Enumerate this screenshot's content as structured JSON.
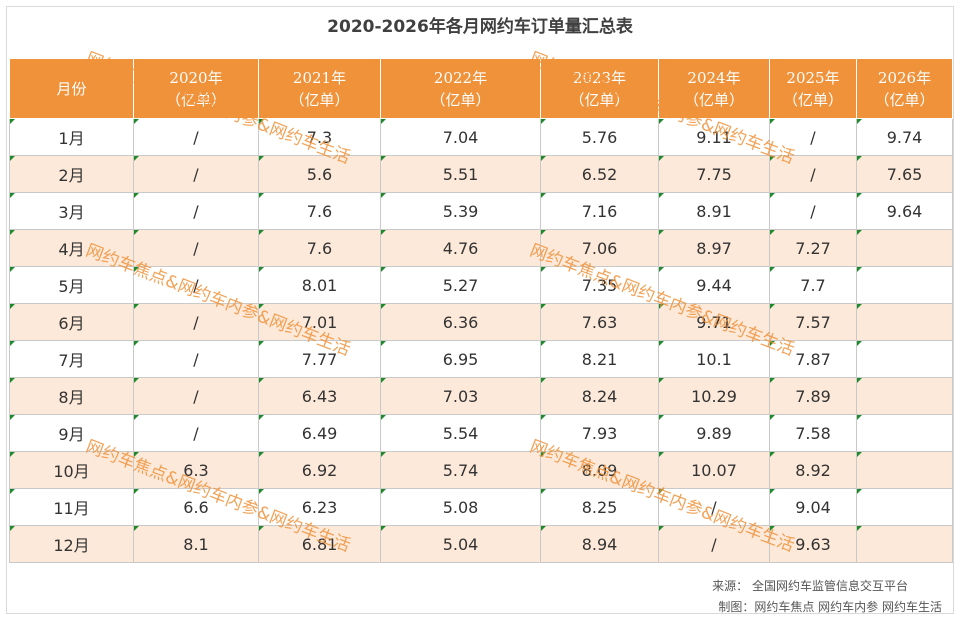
{
  "title": "2020-2026年各月网约车订单量汇总表",
  "header": {
    "month": "月份",
    "years": [
      {
        "year": "2020年",
        "unit": "（亿单）"
      },
      {
        "year": "2021年",
        "unit": "（亿单）"
      },
      {
        "year": "2022年",
        "unit": "（亿单）"
      },
      {
        "year": "2023年",
        "unit": "（亿单）"
      },
      {
        "year": "2024年",
        "unit": "（亿单）"
      },
      {
        "year": "2025年",
        "unit": "（亿单）"
      },
      {
        "year": "2026年",
        "unit": "（亿单）"
      }
    ]
  },
  "rows": [
    {
      "month": "1月",
      "v": [
        "/",
        "7.3",
        "7.04",
        "5.76",
        "9.11",
        "/",
        "9.74"
      ]
    },
    {
      "month": "2月",
      "v": [
        "/",
        "5.6",
        "5.51",
        "6.52",
        "7.75",
        "/",
        "7.65"
      ]
    },
    {
      "month": "3月",
      "v": [
        "/",
        "7.6",
        "5.39",
        "7.16",
        "8.91",
        "/",
        "9.64"
      ]
    },
    {
      "month": "4月",
      "v": [
        "/",
        "7.6",
        "4.76",
        "7.06",
        "8.97",
        "7.27",
        ""
      ]
    },
    {
      "month": "5月",
      "v": [
        "/",
        "8.01",
        "5.27",
        "7.35",
        "9.44",
        "7.7",
        ""
      ]
    },
    {
      "month": "6月",
      "v": [
        "/",
        "7.01",
        "6.36",
        "7.63",
        "9.71",
        "7.57",
        ""
      ]
    },
    {
      "month": "7月",
      "v": [
        "/",
        "7.77",
        "6.95",
        "8.21",
        "10.1",
        "7.87",
        ""
      ]
    },
    {
      "month": "8月",
      "v": [
        "/",
        "6.43",
        "7.03",
        "8.24",
        "10.29",
        "7.89",
        ""
      ]
    },
    {
      "month": "9月",
      "v": [
        "/",
        "6.49",
        "5.54",
        "7.93",
        "9.89",
        "7.58",
        ""
      ]
    },
    {
      "month": "10月",
      "v": [
        "6.3",
        "6.92",
        "5.74",
        "8.09",
        "10.07",
        "8.92",
        ""
      ]
    },
    {
      "month": "11月",
      "v": [
        "6.6",
        "6.23",
        "5.08",
        "8.25",
        "/",
        "9.04",
        ""
      ]
    },
    {
      "month": "12月",
      "v": [
        "8.1",
        "6.81",
        "5.04",
        "8.94",
        "/",
        "9.63",
        ""
      ]
    }
  ],
  "watermark": "网约车焦点&网约车内参&网约车生活",
  "footer": {
    "source": "来源：  全国网约车监管信息交互平台",
    "made_by": "制图：网约车焦点  网约车内参  网约车生活"
  },
  "colors": {
    "header_bg": "#f0923a",
    "stripe_bg": "#fde9d9",
    "watermark": "#f0923a",
    "corner_mark": "#1e8a2c"
  }
}
